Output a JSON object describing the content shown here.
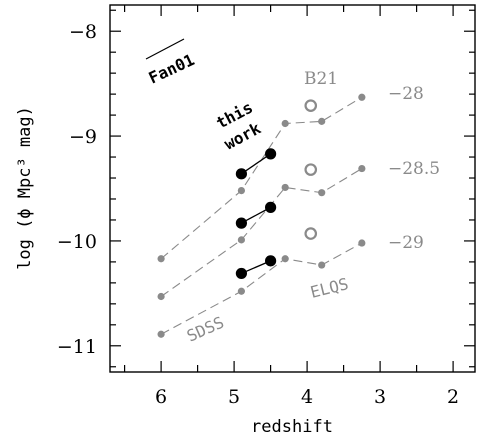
{
  "chart_data": {
    "type": "scatter",
    "xlabel": "redshift",
    "ylabel": "log (ϕ Mpc³ mag)",
    "xlim": [
      6.7,
      1.7
    ],
    "ylim": [
      -11.25,
      -7.75
    ],
    "x_ticks": [
      6,
      5,
      4,
      3,
      2
    ],
    "x_tick_labels": [
      "6",
      "5",
      "4",
      "3",
      "2"
    ],
    "y_ticks": [
      -8,
      -9,
      -10,
      -11
    ],
    "y_tick_labels": [
      "−8",
      "−9",
      "−10",
      "−11"
    ],
    "grid": false,
    "colors": {
      "gray": "#8a8a8a",
      "black": "#000000"
    },
    "series": [
      {
        "magnitude_label": "−28",
        "literature": {
          "x": [
            6.0,
            4.9,
            4.3,
            3.8,
            3.25
          ],
          "y": [
            -10.17,
            -9.52,
            -8.88,
            -8.86,
            -8.63
          ]
        },
        "this_work": {
          "x": [
            4.9,
            4.5
          ],
          "y": [
            -9.36,
            -9.17
          ]
        },
        "b21": {
          "x": [
            3.95
          ],
          "y": [
            -8.71
          ]
        }
      },
      {
        "magnitude_label": "−28.5",
        "literature": {
          "x": [
            6.0,
            4.9,
            4.3,
            3.8,
            3.25
          ],
          "y": [
            -10.53,
            -9.99,
            -9.49,
            -9.54,
            -9.31
          ]
        },
        "this_work": {
          "x": [
            4.9,
            4.5
          ],
          "y": [
            -9.83,
            -9.68
          ]
        },
        "b21": {
          "x": [
            3.95
          ],
          "y": [
            -9.32
          ]
        }
      },
      {
        "magnitude_label": "−29",
        "literature": {
          "x": [
            6.0,
            4.9,
            4.3,
            3.8,
            3.25
          ],
          "y": [
            -10.89,
            -10.48,
            -10.17,
            -10.23,
            -10.02
          ]
        },
        "this_work": {
          "x": [
            4.9,
            4.5
          ],
          "y": [
            -10.31,
            -10.19
          ]
        },
        "b21": {
          "x": [
            3.95
          ],
          "y": [
            -9.93
          ]
        }
      }
    ],
    "annotations": {
      "fan01": "Fan01",
      "this_work_line1": "this",
      "this_work_line2": "work",
      "b21": "B21",
      "sdss": "SDSS",
      "elqs": "ELQS"
    }
  }
}
